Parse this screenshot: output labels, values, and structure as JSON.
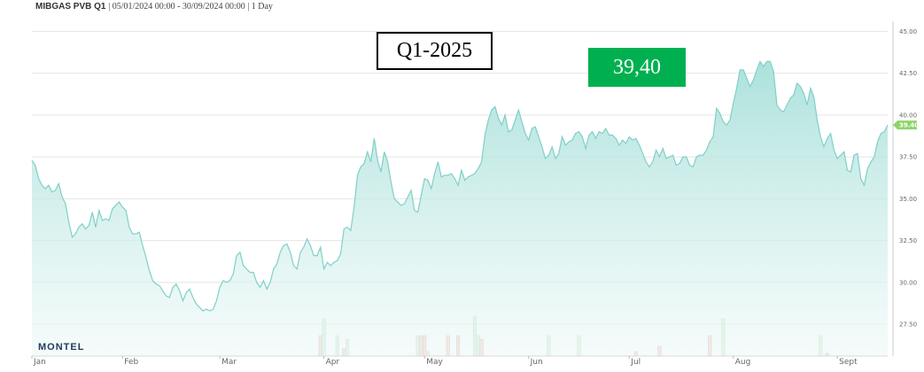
{
  "header": {
    "instrument": "MIBGAS PVB Q1",
    "meta": "| 05/01/2024 00:00 - 30/09/2024 00:00 | 1 Day"
  },
  "contract_label": "Q1-2025",
  "price_label": "39,40",
  "logo_text": "MONTEL",
  "colors": {
    "line": "#7fd0c8",
    "area_top": "#a8e0da",
    "area_bottom": "#eef9f8",
    "price_box": "#00b050",
    "last_badge": "#8fd46a",
    "volume_up": "#d9ecd9",
    "volume_down": "#f2d2cc"
  },
  "chart_data": {
    "type": "area",
    "title": "MIBGAS PVB Q1",
    "xlabel": "",
    "ylabel": "",
    "ylim": [
      25.6,
      45.6
    ],
    "yticks": [
      "45.00",
      "42.50",
      "40.00",
      "37.50",
      "35.00",
      "32.50",
      "30.00",
      "27.50"
    ],
    "ytick_values": [
      45,
      42.5,
      40,
      37.5,
      35,
      32.5,
      30,
      27.5
    ],
    "xticks": [
      {
        "label": "Jan",
        "day": 0
      },
      {
        "label": "Feb",
        "day": 27
      },
      {
        "label": "Mar",
        "day": 56
      },
      {
        "label": "Apr",
        "day": 87
      },
      {
        "label": "May",
        "day": 117
      },
      {
        "label": "Jun",
        "day": 148
      },
      {
        "label": "Jul",
        "day": 178
      },
      {
        "label": "Aug",
        "day": 209
      },
      {
        "label": "Sept",
        "day": 240
      }
    ],
    "last_value_badge": "39.40",
    "grid": true,
    "series": [
      {
        "points": [
          [
            0,
            37.3
          ],
          [
            1,
            37.0
          ],
          [
            2,
            36.2
          ],
          [
            3,
            35.8
          ],
          [
            4,
            35.6
          ],
          [
            5,
            35.8
          ],
          [
            6,
            35.4
          ],
          [
            7,
            35.5
          ],
          [
            8,
            35.9
          ],
          [
            9,
            35.1
          ],
          [
            10,
            34.7
          ],
          [
            11,
            33.6
          ],
          [
            12,
            32.7
          ],
          [
            13,
            32.9
          ],
          [
            14,
            33.3
          ],
          [
            15,
            33.5
          ],
          [
            16,
            33.2
          ],
          [
            17,
            33.4
          ],
          [
            18,
            34.2
          ],
          [
            19,
            33.3
          ],
          [
            20,
            34.3
          ],
          [
            21,
            33.7
          ],
          [
            22,
            33.8
          ],
          [
            23,
            33.7
          ],
          [
            24,
            34.4
          ],
          [
            25,
            34.6
          ],
          [
            26,
            34.8
          ],
          [
            27,
            34.5
          ],
          [
            28,
            34.3
          ],
          [
            29,
            33.3
          ],
          [
            30,
            32.9
          ],
          [
            31,
            32.9
          ],
          [
            32,
            33.0
          ],
          [
            33,
            32.2
          ],
          [
            34,
            31.5
          ],
          [
            35,
            30.7
          ],
          [
            36,
            30.1
          ],
          [
            37,
            29.9
          ],
          [
            38,
            29.8
          ],
          [
            39,
            29.5
          ],
          [
            40,
            29.2
          ],
          [
            41,
            29.1
          ],
          [
            42,
            29.7
          ],
          [
            43,
            29.9
          ],
          [
            44,
            29.5
          ],
          [
            45,
            28.9
          ],
          [
            46,
            29.4
          ],
          [
            47,
            29.6
          ],
          [
            48,
            29.1
          ],
          [
            49,
            28.7
          ],
          [
            50,
            28.5
          ],
          [
            51,
            28.3
          ],
          [
            52,
            28.4
          ],
          [
            53,
            28.3
          ],
          [
            54,
            28.4
          ],
          [
            55,
            28.9
          ],
          [
            56,
            29.7
          ],
          [
            57,
            30.1
          ],
          [
            58,
            30.0
          ],
          [
            59,
            30.1
          ],
          [
            60,
            30.5
          ],
          [
            61,
            31.6
          ],
          [
            62,
            31.8
          ],
          [
            63,
            31.0
          ],
          [
            64,
            30.8
          ],
          [
            65,
            30.6
          ],
          [
            66,
            30.6
          ],
          [
            67,
            30.0
          ],
          [
            68,
            29.7
          ],
          [
            69,
            30.1
          ],
          [
            70,
            29.6
          ],
          [
            71,
            30.0
          ],
          [
            72,
            30.8
          ],
          [
            73,
            31.1
          ],
          [
            74,
            31.8
          ],
          [
            75,
            32.2
          ],
          [
            76,
            32.3
          ],
          [
            77,
            31.8
          ],
          [
            78,
            31.0
          ],
          [
            79,
            30.8
          ],
          [
            80,
            31.8
          ],
          [
            81,
            32.1
          ],
          [
            82,
            32.6
          ],
          [
            83,
            32.2
          ],
          [
            84,
            31.6
          ],
          [
            85,
            31.6
          ],
          [
            86,
            32.1
          ],
          [
            87,
            30.8
          ],
          [
            88,
            31.2
          ],
          [
            89,
            31.0
          ],
          [
            90,
            31.2
          ],
          [
            91,
            31.3
          ],
          [
            92,
            31.7
          ],
          [
            93,
            33.2
          ],
          [
            94,
            33.3
          ],
          [
            95,
            33.1
          ],
          [
            96,
            34.5
          ],
          [
            97,
            36.4
          ],
          [
            98,
            36.9
          ],
          [
            99,
            37.1
          ],
          [
            100,
            37.8
          ],
          [
            101,
            37.2
          ],
          [
            102,
            38.6
          ],
          [
            103,
            37.3
          ],
          [
            104,
            36.6
          ],
          [
            105,
            37.8
          ],
          [
            106,
            37.2
          ],
          [
            107,
            36.0
          ],
          [
            108,
            35.0
          ],
          [
            109,
            34.8
          ],
          [
            110,
            34.6
          ],
          [
            111,
            34.7
          ],
          [
            112,
            35.1
          ],
          [
            113,
            35.5
          ],
          [
            114,
            34.3
          ],
          [
            115,
            34.2
          ],
          [
            116,
            35.2
          ],
          [
            117,
            36.2
          ],
          [
            118,
            36.1
          ],
          [
            119,
            35.6
          ],
          [
            120,
            36.5
          ],
          [
            121,
            37.2
          ],
          [
            122,
            36.3
          ],
          [
            123,
            36.4
          ],
          [
            124,
            36.4
          ],
          [
            125,
            36.5
          ],
          [
            126,
            36.2
          ],
          [
            127,
            35.8
          ],
          [
            128,
            36.7
          ],
          [
            129,
            36.1
          ],
          [
            130,
            36.3
          ],
          [
            131,
            36.4
          ],
          [
            132,
            36.5
          ],
          [
            133,
            36.8
          ],
          [
            134,
            37.2
          ],
          [
            135,
            38.8
          ],
          [
            136,
            39.7
          ],
          [
            137,
            40.3
          ],
          [
            138,
            40.5
          ],
          [
            139,
            39.8
          ],
          [
            140,
            39.4
          ],
          [
            141,
            40.0
          ],
          [
            142,
            39.0
          ],
          [
            143,
            39.1
          ],
          [
            144,
            39.7
          ],
          [
            145,
            40.3
          ],
          [
            146,
            39.6
          ],
          [
            147,
            38.9
          ],
          [
            148,
            38.5
          ],
          [
            149,
            39.2
          ],
          [
            150,
            39.3
          ],
          [
            151,
            38.7
          ],
          [
            152,
            38.1
          ],
          [
            153,
            37.4
          ],
          [
            154,
            37.6
          ],
          [
            155,
            38.1
          ],
          [
            156,
            37.4
          ],
          [
            157,
            37.7
          ],
          [
            158,
            38.7
          ],
          [
            159,
            38.2
          ],
          [
            160,
            38.4
          ],
          [
            161,
            38.5
          ],
          [
            162,
            38.9
          ],
          [
            163,
            39.0
          ],
          [
            164,
            38.7
          ],
          [
            165,
            38.0
          ],
          [
            166,
            38.8
          ],
          [
            167,
            39.0
          ],
          [
            168,
            38.6
          ],
          [
            169,
            39.0
          ],
          [
            170,
            38.9
          ],
          [
            171,
            39.2
          ],
          [
            172,
            38.8
          ],
          [
            173,
            38.8
          ],
          [
            174,
            38.6
          ],
          [
            175,
            38.2
          ],
          [
            176,
            38.5
          ],
          [
            177,
            38.3
          ],
          [
            178,
            38.7
          ],
          [
            179,
            38.5
          ],
          [
            180,
            38.6
          ],
          [
            181,
            38.2
          ],
          [
            182,
            37.7
          ],
          [
            183,
            37.2
          ],
          [
            184,
            36.9
          ],
          [
            185,
            37.2
          ],
          [
            186,
            37.9
          ],
          [
            187,
            37.5
          ],
          [
            188,
            38.0
          ],
          [
            189,
            37.4
          ],
          [
            190,
            37.5
          ],
          [
            191,
            37.6
          ],
          [
            192,
            37.0
          ],
          [
            193,
            37.1
          ],
          [
            194,
            37.5
          ],
          [
            195,
            37.5
          ],
          [
            196,
            37.0
          ],
          [
            197,
            36.9
          ],
          [
            198,
            37.5
          ],
          [
            199,
            37.6
          ],
          [
            200,
            37.6
          ],
          [
            201,
            37.9
          ],
          [
            202,
            38.4
          ],
          [
            203,
            38.7
          ],
          [
            204,
            40.4
          ],
          [
            205,
            40.1
          ],
          [
            206,
            39.6
          ],
          [
            207,
            39.4
          ],
          [
            208,
            39.7
          ],
          [
            209,
            40.7
          ],
          [
            210,
            41.6
          ],
          [
            211,
            42.7
          ],
          [
            212,
            42.7
          ],
          [
            213,
            42.2
          ],
          [
            214,
            41.7
          ],
          [
            215,
            42.1
          ],
          [
            216,
            42.7
          ],
          [
            217,
            43.2
          ],
          [
            218,
            42.9
          ],
          [
            219,
            43.2
          ],
          [
            220,
            43.2
          ],
          [
            221,
            42.6
          ],
          [
            222,
            40.6
          ],
          [
            223,
            40.3
          ],
          [
            224,
            40.2
          ],
          [
            225,
            40.6
          ],
          [
            226,
            41.0
          ],
          [
            227,
            41.2
          ],
          [
            228,
            41.9
          ],
          [
            229,
            41.7
          ],
          [
            230,
            41.3
          ],
          [
            231,
            40.6
          ],
          [
            232,
            41.6
          ],
          [
            233,
            41.1
          ],
          [
            234,
            39.7
          ],
          [
            235,
            38.7
          ],
          [
            236,
            38.1
          ],
          [
            237,
            38.6
          ],
          [
            238,
            38.9
          ],
          [
            239,
            37.9
          ],
          [
            240,
            37.4
          ],
          [
            241,
            37.6
          ],
          [
            242,
            37.8
          ],
          [
            243,
            36.7
          ],
          [
            244,
            36.6
          ],
          [
            245,
            37.6
          ],
          [
            246,
            37.7
          ],
          [
            247,
            36.2
          ],
          [
            248,
            35.8
          ],
          [
            249,
            36.8
          ],
          [
            250,
            37.2
          ],
          [
            251,
            37.5
          ],
          [
            252,
            38.4
          ],
          [
            253,
            38.9
          ],
          [
            254,
            39.0
          ],
          [
            255,
            39.4
          ]
        ]
      }
    ],
    "volume": [
      {
        "day": 86,
        "value": 23,
        "dir": "down"
      },
      {
        "day": 87,
        "value": 42,
        "dir": "up"
      },
      {
        "day": 91,
        "value": 23,
        "dir": "up"
      },
      {
        "day": 93,
        "value": 8,
        "dir": "down"
      },
      {
        "day": 94,
        "value": 19,
        "dir": "up"
      },
      {
        "day": 115,
        "value": 23,
        "dir": "up"
      },
      {
        "day": 116,
        "value": 23,
        "dir": "down"
      },
      {
        "day": 117,
        "value": 23,
        "dir": "down"
      },
      {
        "day": 118,
        "value": 5,
        "dir": "up"
      },
      {
        "day": 124,
        "value": 23,
        "dir": "down"
      },
      {
        "day": 127,
        "value": 23,
        "dir": "down"
      },
      {
        "day": 132,
        "value": 45,
        "dir": "up"
      },
      {
        "day": 133,
        "value": 23,
        "dir": "up"
      },
      {
        "day": 134,
        "value": 19,
        "dir": "down"
      },
      {
        "day": 154,
        "value": 23,
        "dir": "up"
      },
      {
        "day": 163,
        "value": 23,
        "dir": "up"
      },
      {
        "day": 180,
        "value": 5,
        "dir": "down"
      },
      {
        "day": 187,
        "value": 11,
        "dir": "down"
      },
      {
        "day": 202,
        "value": 23,
        "dir": "down"
      },
      {
        "day": 206,
        "value": 42,
        "dir": "up"
      },
      {
        "day": 235,
        "value": 23,
        "dir": "up"
      },
      {
        "day": 237,
        "value": 3,
        "dir": "down"
      }
    ]
  }
}
